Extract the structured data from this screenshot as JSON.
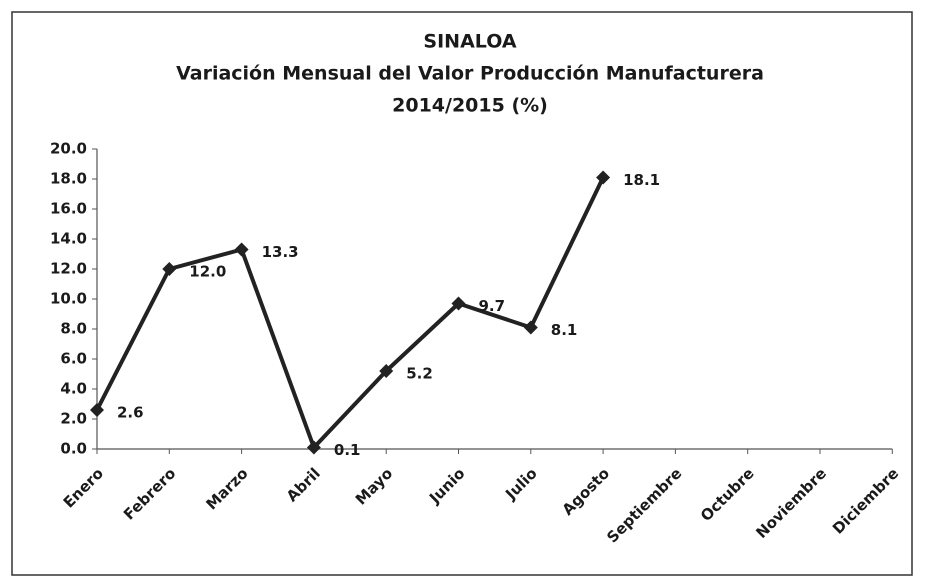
{
  "chart_data": {
    "type": "line",
    "title": [
      "SINALOA",
      "Variación Mensual del Valor Producción Manufacturera",
      "2014/2015 (%)"
    ],
    "categories": [
      "Enero",
      "Febrero",
      "Marzo",
      "Abril",
      "Mayo",
      "Junio",
      "Julio",
      "Agosto",
      "Septiembre",
      "Octubre",
      "Noviembre",
      "Diciembre"
    ],
    "values": [
      2.6,
      12.0,
      13.3,
      0.1,
      5.2,
      9.7,
      8.1,
      18.1,
      null,
      null,
      null,
      null
    ],
    "value_labels": [
      "2.6",
      "12.0",
      "13.3",
      "0.1",
      "5.2",
      "9.7",
      "8.1",
      "18.1",
      null,
      null,
      null,
      null
    ],
    "color": "#222222",
    "ylim": [
      0,
      20
    ],
    "yticks": [
      {
        "value": 0,
        "label": "0.0"
      },
      {
        "value": 2,
        "label": "2.0"
      },
      {
        "value": 4,
        "label": "4.0"
      },
      {
        "value": 6,
        "label": "6.0"
      },
      {
        "value": 8,
        "label": "8.0"
      },
      {
        "value": 10,
        "label": "10.0"
      },
      {
        "value": 12,
        "label": "12.0"
      },
      {
        "value": 14,
        "label": "14.0"
      },
      {
        "value": 16,
        "label": "16.0"
      },
      {
        "value": 18,
        "label": "18.0"
      },
      {
        "value": 20,
        "label": "20.0"
      }
    ],
    "grid": false
  }
}
